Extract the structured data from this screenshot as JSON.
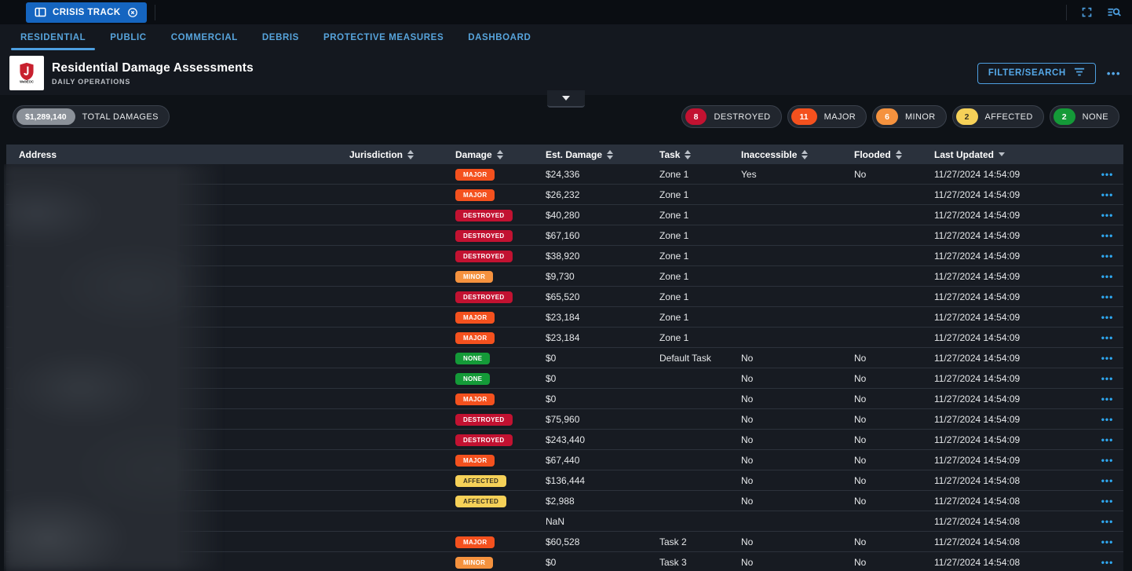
{
  "topbar": {
    "app_tab_label": "CRISIS TRACK",
    "icons": {
      "app_tab": "layout-board-icon",
      "close": "circle-x-icon",
      "fullscreen": "fullscreen-icon",
      "search": "list-search-icon"
    }
  },
  "nav": {
    "tabs": [
      "RESIDENTIAL",
      "PUBLIC",
      "COMMERCIAL",
      "DEBRIS",
      "PROTECTIVE MEASURES",
      "DASHBOARD"
    ],
    "active": "RESIDENTIAL"
  },
  "header": {
    "logo_text": "WebEOC",
    "title": "Residential Damage Assessments",
    "subtitle": "DAILY OPERATIONS",
    "filter_button_label": "FILTER/SEARCH",
    "menu_glyph": "•••"
  },
  "summary": {
    "total": {
      "value": "$1,289,140",
      "label": "TOTAL DAMAGES",
      "count_bg": "#8b9199",
      "count_color": "#ffffff"
    },
    "statuses": [
      {
        "count": "8",
        "label": "DESTROYED",
        "color": "#c21231",
        "text": "#ffffff"
      },
      {
        "count": "11",
        "label": "MAJOR",
        "color": "#f4511e",
        "text": "#ffffff"
      },
      {
        "count": "6",
        "label": "MINOR",
        "color": "#f5923e",
        "text": "#ffffff"
      },
      {
        "count": "2",
        "label": "AFFECTED",
        "color": "#f6d158",
        "text": "#3a3422"
      },
      {
        "count": "2",
        "label": "NONE",
        "color": "#149a38",
        "text": "#ffffff"
      }
    ]
  },
  "table": {
    "columns": [
      {
        "label": "Address",
        "sort": "none"
      },
      {
        "label": "Jurisdiction",
        "sort": "both"
      },
      {
        "label": "Damage",
        "sort": "both"
      },
      {
        "label": "Est. Damage",
        "sort": "both"
      },
      {
        "label": "Task",
        "sort": "both"
      },
      {
        "label": "Inaccessible",
        "sort": "both"
      },
      {
        "label": "Flooded",
        "sort": "both"
      },
      {
        "label": "Last Updated",
        "sort": "desc"
      },
      {
        "label": "",
        "sort": "none"
      }
    ],
    "badge_colors": {
      "MAJOR": "#f4511e",
      "DESTROYED": "#c21231",
      "MINOR": "#f5923e",
      "AFFECTED": "#f6d158",
      "NONE": "#149a38"
    },
    "badge_text_colors": {
      "AFFECTED": "#3a3422"
    },
    "row_menu_glyph": "•••",
    "address_redacted": true,
    "rows": [
      {
        "address": "",
        "jurisdiction": "",
        "damage": "MAJOR",
        "est": "$24,336",
        "task": "Zone 1",
        "inaccessible": "Yes",
        "flooded": "No",
        "updated": "11/27/2024 14:54:09"
      },
      {
        "address": "",
        "jurisdiction": "",
        "damage": "MAJOR",
        "est": "$26,232",
        "task": "Zone 1",
        "inaccessible": "",
        "flooded": "",
        "updated": "11/27/2024 14:54:09"
      },
      {
        "address": "",
        "jurisdiction": "",
        "damage": "DESTROYED",
        "est": "$40,280",
        "task": "Zone 1",
        "inaccessible": "",
        "flooded": "",
        "updated": "11/27/2024 14:54:09"
      },
      {
        "address": "",
        "jurisdiction": "",
        "damage": "DESTROYED",
        "est": "$67,160",
        "task": "Zone 1",
        "inaccessible": "",
        "flooded": "",
        "updated": "11/27/2024 14:54:09"
      },
      {
        "address": "",
        "jurisdiction": "",
        "damage": "DESTROYED",
        "est": "$38,920",
        "task": "Zone 1",
        "inaccessible": "",
        "flooded": "",
        "updated": "11/27/2024 14:54:09"
      },
      {
        "address": "",
        "jurisdiction": "",
        "damage": "MINOR",
        "est": "$9,730",
        "task": "Zone 1",
        "inaccessible": "",
        "flooded": "",
        "updated": "11/27/2024 14:54:09"
      },
      {
        "address": "",
        "jurisdiction": "",
        "damage": "DESTROYED",
        "est": "$65,520",
        "task": "Zone 1",
        "inaccessible": "",
        "flooded": "",
        "updated": "11/27/2024 14:54:09"
      },
      {
        "address": "",
        "jurisdiction": "",
        "damage": "MAJOR",
        "est": "$23,184",
        "task": "Zone 1",
        "inaccessible": "",
        "flooded": "",
        "updated": "11/27/2024 14:54:09"
      },
      {
        "address": "",
        "jurisdiction": "",
        "damage": "MAJOR",
        "est": "$23,184",
        "task": "Zone 1",
        "inaccessible": "",
        "flooded": "",
        "updated": "11/27/2024 14:54:09"
      },
      {
        "address": "",
        "jurisdiction": "",
        "damage": "NONE",
        "est": "$0",
        "task": "Default Task",
        "inaccessible": "No",
        "flooded": "No",
        "updated": "11/27/2024 14:54:09"
      },
      {
        "address": "",
        "jurisdiction": "",
        "damage": "NONE",
        "est": "$0",
        "task": "",
        "inaccessible": "No",
        "flooded": "No",
        "updated": "11/27/2024 14:54:09"
      },
      {
        "address": "",
        "jurisdiction": "",
        "damage": "MAJOR",
        "est": "$0",
        "task": "",
        "inaccessible": "No",
        "flooded": "No",
        "updated": "11/27/2024 14:54:09"
      },
      {
        "address": "",
        "jurisdiction": "",
        "damage": "DESTROYED",
        "est": "$75,960",
        "task": "",
        "inaccessible": "No",
        "flooded": "No",
        "updated": "11/27/2024 14:54:09"
      },
      {
        "address": "",
        "jurisdiction": "",
        "damage": "DESTROYED",
        "est": "$243,440",
        "task": "",
        "inaccessible": "No",
        "flooded": "No",
        "updated": "11/27/2024 14:54:09"
      },
      {
        "address": "",
        "jurisdiction": "",
        "damage": "MAJOR",
        "est": "$67,440",
        "task": "",
        "inaccessible": "No",
        "flooded": "No",
        "updated": "11/27/2024 14:54:09"
      },
      {
        "address": "",
        "jurisdiction": "",
        "damage": "AFFECTED",
        "est": "$136,444",
        "task": "",
        "inaccessible": "No",
        "flooded": "No",
        "updated": "11/27/2024 14:54:08"
      },
      {
        "address": "",
        "jurisdiction": "",
        "damage": "AFFECTED",
        "est": "$2,988",
        "task": "",
        "inaccessible": "No",
        "flooded": "No",
        "updated": "11/27/2024 14:54:08"
      },
      {
        "address": "",
        "jurisdiction": "",
        "damage": "",
        "est": "NaN",
        "task": "",
        "inaccessible": "",
        "flooded": "",
        "updated": "11/27/2024 14:54:08"
      },
      {
        "address": "",
        "jurisdiction": "",
        "damage": "MAJOR",
        "est": "$60,528",
        "task": "Task 2",
        "inaccessible": "No",
        "flooded": "No",
        "updated": "11/27/2024 14:54:08"
      },
      {
        "address": "",
        "jurisdiction": "",
        "damage": "MINOR",
        "est": "$0",
        "task": "Task 3",
        "inaccessible": "No",
        "flooded": "No",
        "updated": "11/27/2024 14:54:08"
      }
    ]
  }
}
